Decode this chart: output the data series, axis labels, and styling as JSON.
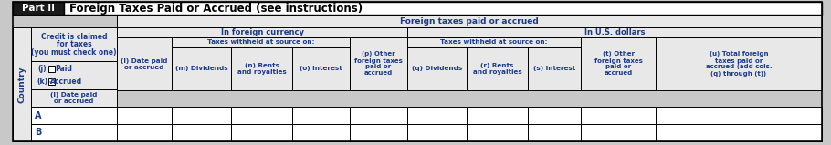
{
  "title_part": "Part II",
  "title_text": "Foreign Taxes Paid or Accrued",
  "title_suffix": " (see instructions)",
  "outer_bg": "#c8c8c8",
  "header_black_bg": "#1a1a1a",
  "header_white_bg": "#ffffff",
  "cell_gray_bg": "#e8e8e8",
  "cell_white_bg": "#ffffff",
  "border_color": "#000000",
  "text_blue": "#1a3a8a",
  "text_white": "#ffffff",
  "text_black": "#000000",
  "fig_width": 9.1,
  "fig_height": 1.59,
  "dpi": 100,
  "country_label": "Country",
  "credit_label1": "Credit is claimed",
  "credit_label2": "for taxes",
  "credit_label3": "(you must check one)",
  "j_label": "(j)",
  "j_text": "Paid",
  "k_label": "(k)",
  "k_text": "Accrued",
  "k_checked": true,
  "foreign_taxes_label": "Foreign taxes paid or accrued",
  "in_foreign_currency": "In foreign currency",
  "in_us_dollars": "In U.S. dollars",
  "taxes_withheld1": "Taxes withheld at source on:",
  "taxes_withheld2": "Taxes withheld at source on:",
  "col_l": "(l) Date paid\nor accrued",
  "col_m": "(m) Dividends",
  "col_n": "(n) Rents\nand royalties",
  "col_o": "(o) Interest",
  "col_p": "(p) Other\nforeign taxes\npaid or\naccrued",
  "col_q": "(q) Dividends",
  "col_r": "(r) Rents\nand royalties",
  "col_s": "(s) Interest",
  "col_t": "(t) Other\nforeign taxes\npaid or\naccrued",
  "col_u": "(u) Total foreign\ntaxes paid or\naccrued (add cols.\n(q) through (t))",
  "row_A": "A",
  "row_B": "B"
}
